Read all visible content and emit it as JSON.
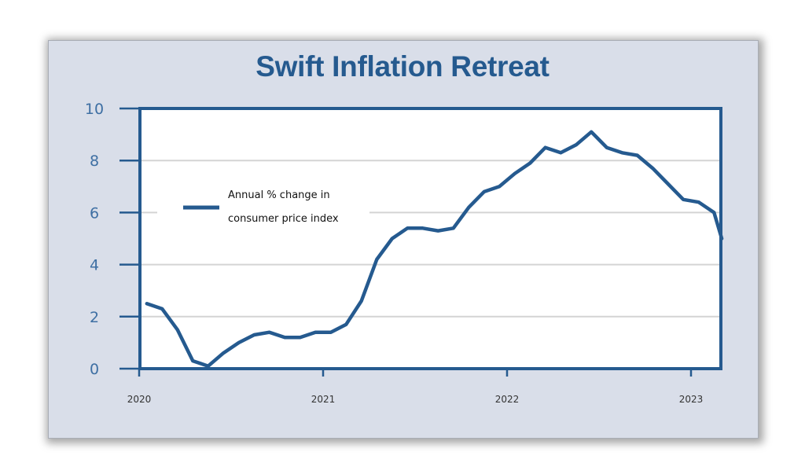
{
  "chart_data": {
    "type": "line",
    "title": "Swift Inflation Retreat",
    "xlabel": "",
    "ylabel": "",
    "ylim": [
      0,
      10
    ],
    "yticks": [
      0,
      2,
      4,
      6,
      8,
      10
    ],
    "ytick_labels": [
      "0",
      "2",
      "4",
      "6",
      "8",
      "10"
    ],
    "xlim": [
      2020.0,
      2023.2
    ],
    "xticks": [
      2020,
      2021,
      2022,
      2023
    ],
    "xtick_labels": [
      "2020",
      "2021",
      "2022",
      "2023"
    ],
    "grid": true,
    "legend": {
      "position": "upper-left",
      "label_line1": "Annual % change in",
      "label_line2": "consumer price index"
    },
    "colors": {
      "series": "#255a8f",
      "frame": "#255a8f",
      "grid": "#d4d4d4",
      "background": "#d9dee9"
    },
    "series": [
      {
        "name": "Annual % change in consumer price index",
        "x": [
          2020.042,
          2020.125,
          2020.208,
          2020.292,
          2020.375,
          2020.458,
          2020.542,
          2020.625,
          2020.708,
          2020.792,
          2020.875,
          2020.958,
          2021.042,
          2021.125,
          2021.208,
          2021.292,
          2021.375,
          2021.458,
          2021.542,
          2021.625,
          2021.708,
          2021.792,
          2021.875,
          2021.958,
          2022.042,
          2022.125,
          2022.208,
          2022.292,
          2022.375,
          2022.458,
          2022.542,
          2022.625,
          2022.708,
          2022.792,
          2022.875,
          2022.958,
          2023.042,
          2023.125,
          2023.167
        ],
        "values": [
          2.5,
          2.3,
          1.5,
          0.3,
          0.1,
          0.6,
          1.0,
          1.3,
          1.4,
          1.2,
          1.2,
          1.4,
          1.4,
          1.7,
          2.6,
          4.2,
          5.0,
          5.4,
          5.4,
          5.3,
          5.4,
          6.2,
          6.8,
          7.0,
          7.5,
          7.9,
          8.5,
          8.3,
          8.6,
          9.1,
          8.5,
          8.3,
          8.2,
          7.7,
          7.1,
          6.5,
          6.4,
          6.0,
          5.0
        ]
      }
    ]
  }
}
